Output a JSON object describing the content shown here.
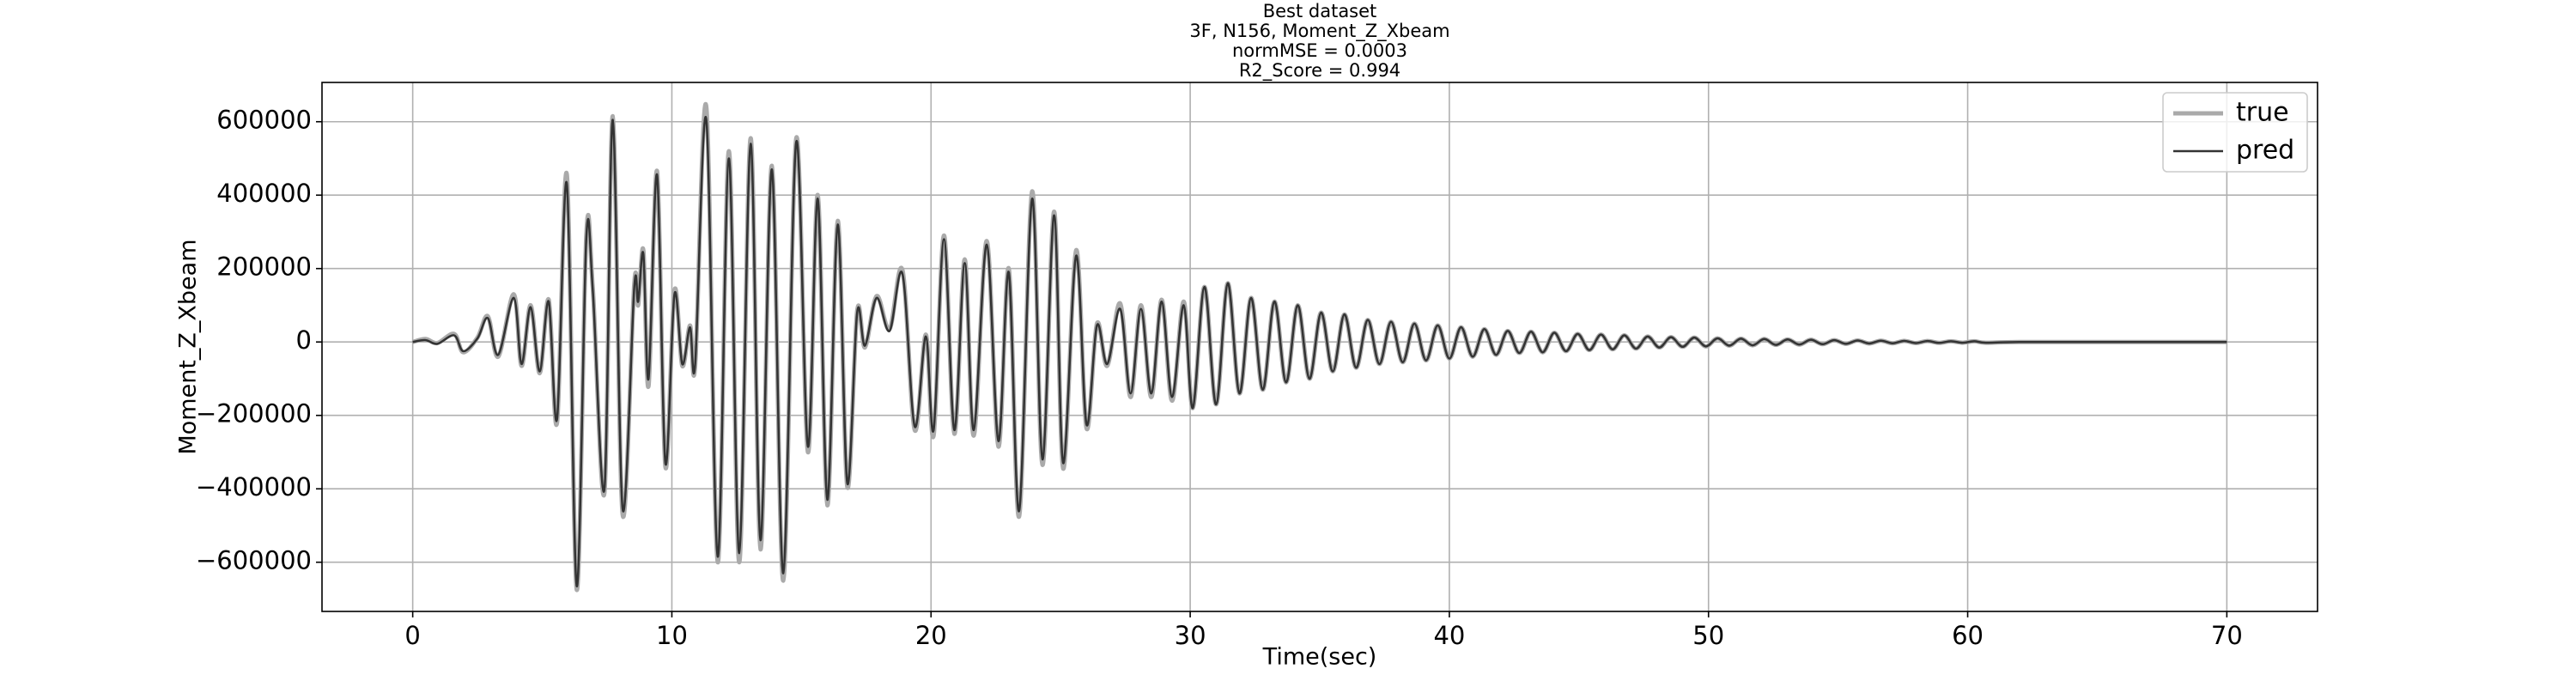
{
  "chart_data": {
    "type": "line",
    "title": [
      "Best dataset",
      "3F, N156, Moment_Z_Xbeam",
      "normMSE = 0.0003",
      "R2_Score = 0.994"
    ],
    "xlabel": "Time(sec)",
    "ylabel": "Moment_Z_Xbeam",
    "xlim": [
      -3.5,
      73.5
    ],
    "ylim": [
      -734000,
      707000
    ],
    "xticks": [
      0,
      10,
      20,
      30,
      40,
      50,
      60,
      70
    ],
    "yticks": [
      {
        "value": -600000,
        "label": "−600000"
      },
      {
        "value": -400000,
        "label": "−400000"
      },
      {
        "value": -200000,
        "label": "−200000"
      },
      0,
      200000,
      400000,
      600000
    ],
    "grid": true,
    "legend": "upper right",
    "x": [
      0,
      0.5,
      0.95,
      1.6,
      1.95,
      2.5,
      2.9,
      3.3,
      3.9,
      4.2,
      4.55,
      4.9,
      5.25,
      5.57,
      5.95,
      6.33,
      6.7,
      6.95,
      7.4,
      7.72,
      8.1,
      8.55,
      8.7,
      8.9,
      9.1,
      9.43,
      9.75,
      10.1,
      10.4,
      10.7,
      10.9,
      11.33,
      11.77,
      12.2,
      12.6,
      13.04,
      13.42,
      13.86,
      14.3,
      14.8,
      15.25,
      15.63,
      16.0,
      16.4,
      16.77,
      17.15,
      17.45,
      17.9,
      18.4,
      18.9,
      19.37,
      19.8,
      20.1,
      20.5,
      20.9,
      21.3,
      21.65,
      22.15,
      22.6,
      23.0,
      23.4,
      23.9,
      24.3,
      24.75,
      25.1,
      25.6,
      26.0,
      26.4,
      26.8,
      27.3,
      27.7,
      28.1,
      28.5,
      28.9,
      29.3,
      29.75,
      30.1,
      30.55,
      31.0,
      31.45,
      31.9,
      32.35,
      32.8,
      33.25,
      33.7,
      34.15,
      34.6,
      35.05,
      35.5,
      35.95,
      36.4,
      36.85,
      37.3,
      37.75,
      38.2,
      38.65,
      39.1,
      39.55,
      40.0,
      40.45,
      40.9,
      41.35,
      41.8,
      42.25,
      42.7,
      43.15,
      43.6,
      44.05,
      44.5,
      44.95,
      45.4,
      45.85,
      46.3,
      46.75,
      47.2,
      47.65,
      48.1,
      48.55,
      49.0,
      49.45,
      49.9,
      50.35,
      50.8,
      51.25,
      51.7,
      52.15,
      52.6,
      53.05,
      53.5,
      53.95,
      54.4,
      54.85,
      55.3,
      55.75,
      56.2,
      56.65,
      57.1,
      57.55,
      58.0,
      58.45,
      58.9,
      59.35,
      59.8,
      60.25,
      60.7,
      62,
      66,
      70
    ],
    "series": [
      {
        "name": "true",
        "color": "#aaaaaa",
        "values": [
          0,
          8000,
          -3000,
          22000,
          -28000,
          12000,
          70000,
          -40000,
          130000,
          -65000,
          100000,
          -85000,
          115000,
          -220000,
          455000,
          -675000,
          295000,
          145000,
          -410000,
          615000,
          -470000,
          160000,
          100000,
          250000,
          -120000,
          465000,
          -340000,
          140000,
          -65000,
          45000,
          -65000,
          640000,
          -600000,
          520000,
          -600000,
          555000,
          -565000,
          480000,
          -650000,
          555000,
          -300000,
          400000,
          -445000,
          330000,
          -395000,
          85000,
          -15000,
          125000,
          35000,
          195000,
          -240000,
          20000,
          -255000,
          290000,
          -250000,
          225000,
          -255000,
          275000,
          -285000,
          200000,
          -475000,
          410000,
          -335000,
          355000,
          -345000,
          250000,
          -235000,
          50000,
          -65000,
          105000,
          -150000,
          100000,
          -150000,
          115000,
          -160000,
          110000,
          -180000,
          150000,
          -170000,
          160000,
          -140000,
          120000,
          -130000,
          110000,
          -110000,
          100000,
          -100000,
          80000,
          -80000,
          75000,
          -70000,
          60000,
          -60000,
          55000,
          -55000,
          50000,
          -50000,
          45000,
          -45000,
          40000,
          -40000,
          35000,
          -35000,
          30000,
          -30000,
          28000,
          -28000,
          25000,
          -25000,
          22000,
          -22000,
          20000,
          -20000,
          18000,
          -18000,
          15000,
          -15000,
          13000,
          -13000,
          12000,
          -12000,
          10000,
          -10000,
          9000,
          -9000,
          8000,
          -8000,
          7000,
          -7000,
          6000,
          -6000,
          5000,
          -5000,
          4000,
          -4000,
          3500,
          -3500,
          3000,
          -3000,
          2500,
          -2500,
          2000,
          -2000,
          2000,
          -2000,
          0,
          0,
          0
        ]
      },
      {
        "name": "pred",
        "color": "#333333",
        "values": [
          0,
          5000,
          -5000,
          18000,
          -25000,
          10000,
          65000,
          -35000,
          120000,
          -60000,
          95000,
          -80000,
          110000,
          -210000,
          430000,
          -665000,
          285000,
          140000,
          -400000,
          605000,
          -455000,
          150000,
          110000,
          240000,
          -100000,
          455000,
          -330000,
          130000,
          -60000,
          40000,
          -60000,
          605000,
          -585000,
          500000,
          -575000,
          540000,
          -540000,
          470000,
          -630000,
          545000,
          -285000,
          390000,
          -430000,
          320000,
          -385000,
          80000,
          -10000,
          120000,
          30000,
          185000,
          -230000,
          15000,
          -240000,
          280000,
          -240000,
          215000,
          -240000,
          265000,
          -270000,
          190000,
          -460000,
          390000,
          -320000,
          345000,
          -330000,
          235000,
          -225000,
          45000,
          -60000,
          90000,
          -140000,
          90000,
          -140000,
          110000,
          -150000,
          100000,
          -180000,
          150000,
          -170000,
          160000,
          -140000,
          120000,
          -130000,
          110000,
          -110000,
          100000,
          -100000,
          80000,
          -80000,
          75000,
          -70000,
          60000,
          -60000,
          55000,
          -55000,
          50000,
          -50000,
          45000,
          -45000,
          40000,
          -40000,
          35000,
          -35000,
          30000,
          -30000,
          28000,
          -28000,
          25000,
          -25000,
          22000,
          -22000,
          20000,
          -20000,
          18000,
          -18000,
          15000,
          -15000,
          13000,
          -13000,
          12000,
          -12000,
          10000,
          -10000,
          9000,
          -9000,
          8000,
          -8000,
          7000,
          -7000,
          6000,
          -6000,
          5000,
          -5000,
          4000,
          -4000,
          3500,
          -3500,
          3000,
          -3000,
          2500,
          -2500,
          2000,
          -2000,
          2000,
          -2000,
          0,
          0,
          0
        ]
      }
    ]
  }
}
